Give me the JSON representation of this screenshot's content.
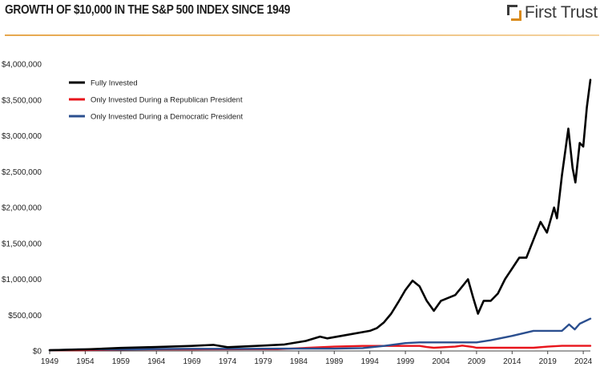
{
  "header": {
    "title": "GROWTH OF $10,000 IN THE S&P 500 INDEX SINCE 1949",
    "logo_text": "First Trust"
  },
  "colors": {
    "fully": "#000000",
    "republican": "#e8141b",
    "democratic": "#2b4f8f",
    "rule": "#e6a74d"
  },
  "chart_data": {
    "type": "line",
    "title": "GROWTH OF $10,000 IN THE S&P 500 INDEX SINCE 1949",
    "xlabel": "",
    "ylabel": "",
    "xlim": [
      1949,
      2025
    ],
    "ylim": [
      0,
      4000000
    ],
    "x_ticks": [
      "1949",
      "1954",
      "1959",
      "1964",
      "1969",
      "1974",
      "1979",
      "1984",
      "1989",
      "1994",
      "1999",
      "2004",
      "2009",
      "2014",
      "2019",
      "2024"
    ],
    "y_ticks": [
      "$0",
      "$500,000",
      "$1,000,000",
      "$1,500,000",
      "$2,000,000",
      "$2,500,000",
      "$3,000,000",
      "$3,500,000",
      "$4,000,000"
    ],
    "y_tick_values": [
      0,
      500000,
      1000000,
      1500000,
      2000000,
      2500000,
      3000000,
      3500000,
      4000000
    ],
    "grid": "horizontal",
    "legend_position": "top-left",
    "series": [
      {
        "name": "Fully Invested",
        "color": "#000000",
        "points": [
          [
            1949,
            10000
          ],
          [
            1954,
            22000
          ],
          [
            1959,
            42000
          ],
          [
            1964,
            55000
          ],
          [
            1969,
            70000
          ],
          [
            1972,
            85000
          ],
          [
            1974,
            52000
          ],
          [
            1979,
            75000
          ],
          [
            1982,
            90000
          ],
          [
            1985,
            140000
          ],
          [
            1987,
            200000
          ],
          [
            1988,
            175000
          ],
          [
            1990,
            210000
          ],
          [
            1994,
            280000
          ],
          [
            1995,
            320000
          ],
          [
            1996,
            400000
          ],
          [
            1997,
            520000
          ],
          [
            1998,
            680000
          ],
          [
            1999,
            850000
          ],
          [
            2000,
            980000
          ],
          [
            2001,
            900000
          ],
          [
            2002,
            700000
          ],
          [
            2003,
            560000
          ],
          [
            2004,
            700000
          ],
          [
            2006,
            780000
          ],
          [
            2007,
            900000
          ],
          [
            2007.8,
            1000000
          ],
          [
            2008.5,
            750000
          ],
          [
            2009.2,
            520000
          ],
          [
            2010,
            700000
          ],
          [
            2011,
            700000
          ],
          [
            2012,
            800000
          ],
          [
            2013,
            1000000
          ],
          [
            2014,
            1150000
          ],
          [
            2015,
            1300000
          ],
          [
            2016,
            1300000
          ],
          [
            2017,
            1550000
          ],
          [
            2018,
            1800000
          ],
          [
            2018.9,
            1650000
          ],
          [
            2019.9,
            2000000
          ],
          [
            2020.3,
            1850000
          ],
          [
            2021,
            2450000
          ],
          [
            2021.9,
            3100000
          ],
          [
            2022.5,
            2550000
          ],
          [
            2022.9,
            2350000
          ],
          [
            2023.5,
            2900000
          ],
          [
            2024,
            2850000
          ],
          [
            2024.5,
            3400000
          ],
          [
            2025,
            3780000
          ]
        ]
      },
      {
        "name": "Only Invested During a Republican President",
        "color": "#e8141b",
        "points": [
          [
            1949,
            10000
          ],
          [
            1953,
            10000
          ],
          [
            1961,
            22000
          ],
          [
            1964,
            22000
          ],
          [
            1969,
            22000
          ],
          [
            1977,
            25000
          ],
          [
            1981,
            25000
          ],
          [
            1989,
            60000
          ],
          [
            1993,
            70000
          ],
          [
            2001,
            70000
          ],
          [
            2002,
            55000
          ],
          [
            2003,
            45000
          ],
          [
            2006,
            60000
          ],
          [
            2007,
            75000
          ],
          [
            2008.5,
            55000
          ],
          [
            2009,
            45000
          ],
          [
            2017,
            45000
          ],
          [
            2019,
            60000
          ],
          [
            2021,
            72000
          ],
          [
            2025,
            72000
          ]
        ]
      },
      {
        "name": "Only Invested During a Democratic President",
        "color": "#2b4f8f",
        "points": [
          [
            1949,
            10000
          ],
          [
            1953,
            22000
          ],
          [
            1961,
            22000
          ],
          [
            1965,
            28000
          ],
          [
            1969,
            30000
          ],
          [
            1977,
            30000
          ],
          [
            1981,
            32000
          ],
          [
            1989,
            32000
          ],
          [
            1993,
            40000
          ],
          [
            1996,
            70000
          ],
          [
            1999,
            110000
          ],
          [
            2001,
            120000
          ],
          [
            2009,
            120000
          ],
          [
            2011,
            150000
          ],
          [
            2014,
            210000
          ],
          [
            2017,
            280000
          ],
          [
            2021,
            280000
          ],
          [
            2022,
            370000
          ],
          [
            2022.8,
            300000
          ],
          [
            2023.5,
            380000
          ],
          [
            2025,
            450000
          ]
        ]
      }
    ]
  }
}
